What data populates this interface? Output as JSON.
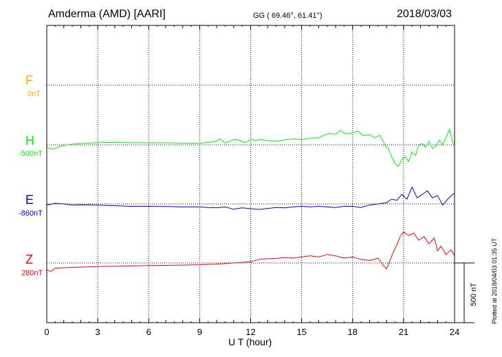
{
  "header": {
    "station": "Amderma (AMD)  [AARI]",
    "coords": "GG ( 69.46°,  61.41°)",
    "date": "2018/03/03"
  },
  "footer": {
    "plotted": "Plotted at 2018/04/03 01:35 UT",
    "scale_label": "500 nT"
  },
  "colors": {
    "F": "#ffa500",
    "H": "#00ee00",
    "E": "#0000cc",
    "Z": "#ee0000",
    "grid": "#000000"
  },
  "chart_data": {
    "type": "line",
    "title": "Amderma (AMD)  [AARI]",
    "xlabel": "U T (hour)",
    "ylabel": "",
    "xlim": [
      0,
      24
    ],
    "x_ticks": [
      "0",
      "3",
      "6",
      "9",
      "12",
      "15",
      "18",
      "21",
      "24"
    ],
    "grid": true,
    "y_unit": "nT",
    "scale_bar_nT": 500,
    "series": [
      {
        "name": "F",
        "baseline_label": "0nT",
        "baseline": 0,
        "x": [],
        "values": []
      },
      {
        "name": "H",
        "baseline_label": "-500nT",
        "baseline": -500,
        "x": [
          0,
          0.25,
          0.5,
          0.75,
          1,
          1.5,
          2,
          2.5,
          3,
          3.5,
          4,
          5,
          6,
          7,
          8,
          9,
          9.5,
          10,
          10.2,
          10.5,
          10.8,
          11,
          11.3,
          11.6,
          11.8,
          12,
          12.3,
          12.6,
          13,
          13.5,
          14,
          14.5,
          15,
          15.5,
          16,
          16.3,
          16.6,
          17,
          17.3,
          17.6,
          18,
          18.3,
          18.6,
          19,
          19.3,
          19.6,
          19.9,
          20.1,
          20.3,
          20.5,
          20.7,
          20.9,
          21.1,
          21.3,
          21.5,
          21.7,
          21.9,
          22.1,
          22.3,
          22.5,
          22.7,
          22.9,
          23.1,
          23.3,
          23.5,
          23.7,
          23.9,
          24
        ],
        "values": [
          -520,
          -535,
          -530,
          -515,
          -505,
          -495,
          -490,
          -485,
          -482,
          -480,
          -480,
          -482,
          -483,
          -483,
          -485,
          -486,
          -480,
          -470,
          -450,
          -485,
          -470,
          -455,
          -460,
          -480,
          -475,
          -450,
          -465,
          -455,
          -465,
          -470,
          -460,
          -450,
          -455,
          -445,
          -440,
          -420,
          -405,
          -410,
          -380,
          -410,
          -400,
          -385,
          -420,
          -415,
          -440,
          -420,
          -500,
          -530,
          -600,
          -660,
          -680,
          -620,
          -600,
          -640,
          -560,
          -590,
          -500,
          -490,
          -520,
          -470,
          -530,
          -510,
          -460,
          -500,
          -440,
          -370,
          -480,
          -490
        ]
      },
      {
        "name": "E",
        "baseline_label": "-860nT",
        "baseline": -860,
        "x": [
          0,
          0.5,
          1,
          1.5,
          2,
          3,
          4,
          5,
          6,
          7,
          8,
          9,
          9.5,
          10,
          10.5,
          11,
          11.5,
          12,
          12.5,
          13,
          13.5,
          14,
          14.5,
          15,
          15.5,
          16,
          16.5,
          17,
          17.5,
          18,
          18.5,
          19,
          19.5,
          20,
          20.3,
          20.6,
          20.9,
          21.2,
          21.5,
          21.8,
          22.1,
          22.4,
          22.7,
          23,
          23.3,
          23.6,
          24
        ],
        "values": [
          -870,
          -855,
          -860,
          -870,
          -868,
          -870,
          -875,
          -880,
          -880,
          -882,
          -885,
          -885,
          -890,
          -892,
          -885,
          -905,
          -893,
          -900,
          -906,
          -898,
          -890,
          -893,
          -885,
          -880,
          -885,
          -880,
          -885,
          -890,
          -880,
          -880,
          -890,
          -870,
          -860,
          -850,
          -820,
          -830,
          -780,
          -820,
          -720,
          -810,
          -780,
          -750,
          -810,
          -790,
          -870,
          -820,
          -770
        ]
      },
      {
        "name": "Z",
        "baseline_label": "280nT",
        "baseline": 280,
        "x": [
          0,
          0.25,
          0.5,
          1,
          2,
          3,
          4,
          5,
          6,
          7,
          8,
          9,
          10,
          11,
          12,
          12.5,
          13,
          13.5,
          14,
          14.5,
          15,
          15.5,
          16,
          16.5,
          17,
          17.5,
          18,
          18.5,
          19,
          19.5,
          19.8,
          20,
          20.2,
          20.4,
          20.6,
          20.8,
          21,
          21.3,
          21.6,
          21.9,
          22.2,
          22.5,
          22.8,
          23,
          23.2,
          23.5,
          23.8,
          24
        ],
        "values": [
          220,
          210,
          235,
          240,
          245,
          250,
          252,
          255,
          258,
          260,
          262,
          265,
          270,
          280,
          290,
          310,
          315,
          318,
          325,
          320,
          330,
          340,
          330,
          350,
          340,
          320,
          330,
          310,
          300,
          320,
          260,
          230,
          300,
          370,
          430,
          500,
          540,
          510,
          530,
          470,
          500,
          440,
          490,
          380,
          420,
          350,
          390,
          340
        ]
      }
    ]
  }
}
